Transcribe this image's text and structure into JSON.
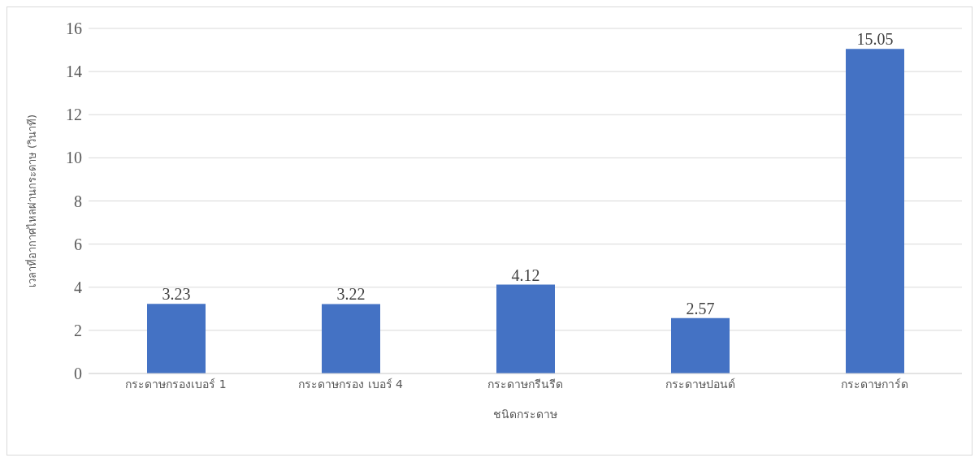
{
  "chart_data": {
    "type": "bar",
    "xlabel": "ชนิดกระดาษ",
    "ylabel": "เวลาที่อากาศไหลผ่านกระดาษ (วินาที)",
    "categories": [
      "กระดาษกรองเบอร์ 1",
      "กระดาษกรอง เบอร์ 4",
      "กระดาษกรีนรีด",
      "กระดาษปอนด์",
      "กระดาษการ์ด"
    ],
    "values": [
      3.23,
      3.22,
      4.12,
      2.57,
      15.05
    ],
    "color": "#4472c4",
    "ylim": [
      0,
      16
    ],
    "yticks": [
      0,
      2,
      4,
      6,
      8,
      10,
      12,
      14,
      16
    ],
    "grid": "y",
    "data_labels": true
  }
}
